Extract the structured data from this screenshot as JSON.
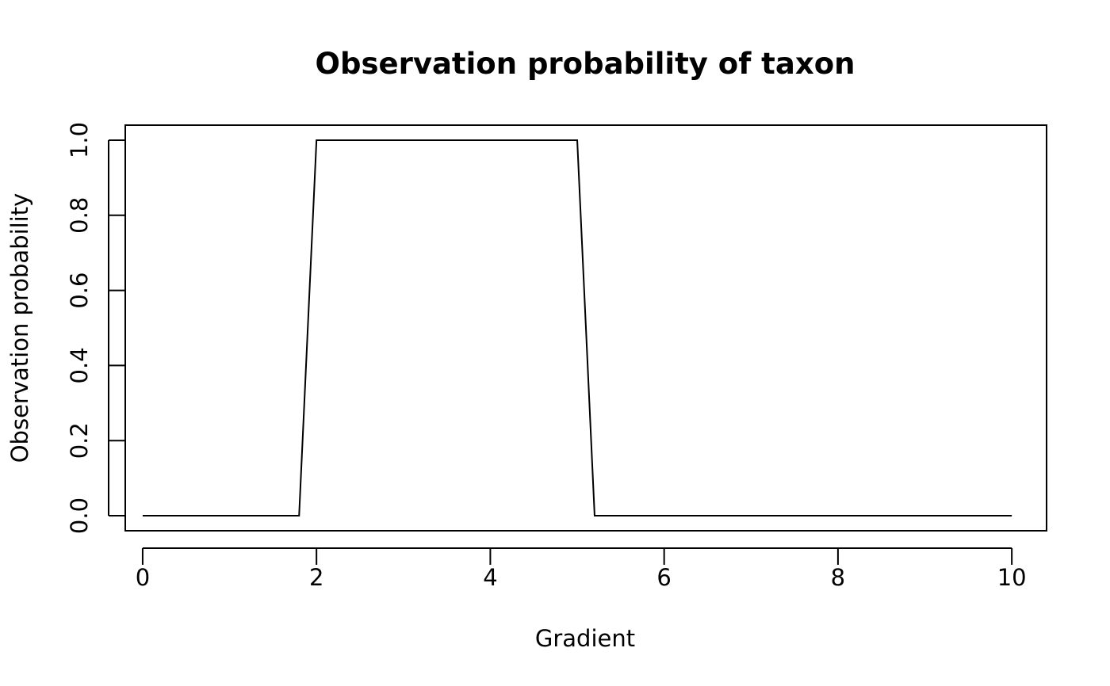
{
  "chart_data": {
    "type": "line",
    "title": "Observation probability of taxon",
    "xlabel": "Gradient",
    "ylabel": "Observation probability",
    "xlim": [
      -0.2,
      10.4
    ],
    "ylim": [
      -0.04,
      1.04
    ],
    "x_ticks": [
      0,
      2,
      4,
      6,
      8,
      10
    ],
    "x_tick_labels": [
      "0",
      "2",
      "4",
      "6",
      "8",
      "10"
    ],
    "y_ticks": [
      0.0,
      0.2,
      0.4,
      0.6,
      0.8,
      1.0
    ],
    "y_tick_labels": [
      "0.0",
      "0.2",
      "0.4",
      "0.6",
      "0.8",
      "1.0"
    ],
    "grid": false,
    "line_color": "#000000",
    "series": [
      {
        "x": [
          0,
          1.8,
          2.0,
          5.0,
          5.2,
          10
        ],
        "y": [
          0,
          0,
          1,
          1,
          0,
          0
        ]
      }
    ]
  }
}
